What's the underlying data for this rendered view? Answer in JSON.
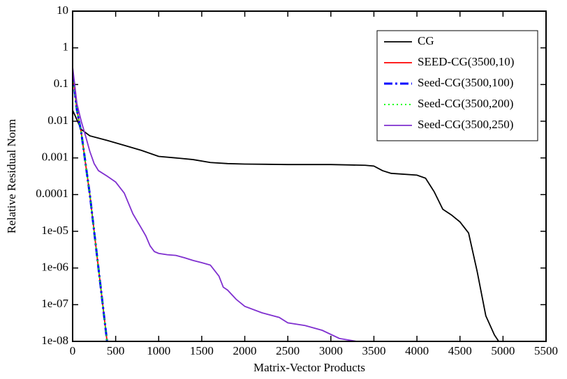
{
  "chart_data": {
    "type": "line",
    "log_y": true,
    "x_label": "Matrix-Vector Products",
    "y_label": "Relative Residual Norm",
    "xlim": [
      0,
      5500
    ],
    "xticks": [
      0,
      500,
      1000,
      1500,
      2000,
      2500,
      3000,
      3500,
      4000,
      4500,
      5000,
      5500
    ],
    "ylim": [
      1e-08,
      10
    ],
    "yticks": [
      10,
      1,
      0.1,
      0.01,
      0.001,
      0.0001,
      {
        "value": 1e-05,
        "label": "1e-05"
      },
      {
        "value": 1e-06,
        "label": "1e-06"
      },
      {
        "value": 1e-07,
        "label": "1e-07"
      },
      {
        "value": 1e-08,
        "label": "1e-08"
      }
    ],
    "legend": "upper right",
    "series": [
      {
        "name": "CG",
        "color": "#000000",
        "dash": "solid",
        "x": [
          0,
          100,
          200,
          400,
          600,
          800,
          1000,
          1200,
          1400,
          1600,
          1800,
          2000,
          2500,
          3000,
          3400,
          3500,
          3600,
          3700,
          4000,
          4100,
          4200,
          4300,
          4400,
          4500,
          4600,
          4700,
          4800,
          4900,
          4950
        ],
        "values": [
          0.02,
          0.006,
          0.004,
          0.003,
          0.0022,
          0.0016,
          0.0011,
          0.001,
          0.0009,
          0.00075,
          0.0007,
          0.00068,
          0.00066,
          0.00066,
          0.00063,
          0.0006,
          0.00045,
          0.00038,
          0.00034,
          0.00028,
          0.00012,
          4e-05,
          2.8e-05,
          1.8e-05,
          9e-06,
          8e-07,
          5e-08,
          1.5e-08,
          1e-08
        ]
      },
      {
        "name": "SEED-CG(3500,10)",
        "color": "#ff0000",
        "dash": "solid",
        "x": [
          0,
          50,
          100,
          200,
          300,
          400
        ],
        "values": [
          0.2,
          0.02,
          0.005,
          0.0001,
          1e-06,
          1e-08
        ]
      },
      {
        "name": "Seed-CG(3500,100)",
        "color": "#0000ff",
        "dash": "dashdot",
        "x": [
          0,
          50,
          100,
          200,
          300,
          400
        ],
        "values": [
          0.2,
          0.02,
          0.005,
          0.0001,
          1e-06,
          1e-08
        ]
      },
      {
        "name": "Seed-CG(3500,200)",
        "color": "#00ff00",
        "dash": "dotted",
        "x": [
          0,
          50,
          100,
          200,
          300,
          400
        ],
        "values": [
          0.2,
          0.02,
          0.005,
          0.0001,
          1e-06,
          1e-08
        ]
      },
      {
        "name": "Seed-CG(3500,250)",
        "color": "#7f2fcf",
        "dash": "solid",
        "x": [
          0,
          50,
          100,
          150,
          200,
          250,
          300,
          400,
          500,
          600,
          700,
          800,
          850,
          900,
          950,
          1000,
          1100,
          1200,
          1300,
          1400,
          1500,
          1600,
          1700,
          1750,
          1800,
          1900,
          2000,
          2200,
          2400,
          2500,
          2700,
          2900,
          3100,
          3300
        ],
        "values": [
          0.3,
          0.03,
          0.01,
          0.004,
          0.0015,
          0.0007,
          0.00045,
          0.00032,
          0.00022,
          0.00011,
          3e-05,
          1.2e-05,
          7.5e-06,
          4e-06,
          2.8e-06,
          2.5e-06,
          2.3e-06,
          2.2e-06,
          1.9e-06,
          1.6e-06,
          1.4e-06,
          1.2e-06,
          6e-07,
          3e-07,
          2.5e-07,
          1.4e-07,
          9e-08,
          6e-08,
          4.5e-08,
          3.2e-08,
          2.7e-08,
          2e-08,
          1.2e-08,
          1e-08
        ]
      }
    ]
  }
}
